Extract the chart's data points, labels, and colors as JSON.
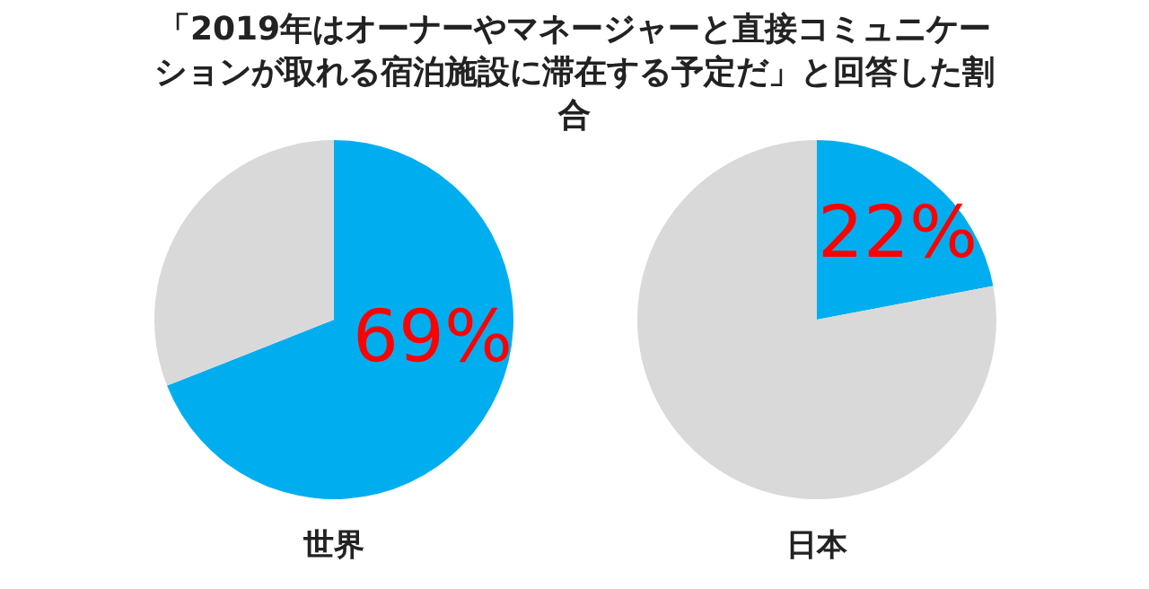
{
  "chart_data": [
    {
      "type": "pie",
      "title": "「2019年はオーナーやマネージャーと直接コミュニケーションが取れる宿泊施設に滞在する予定だ」と回答した割合",
      "xlabel": "世界",
      "categories": [
        null,
        null
      ],
      "values": [
        69,
        31
      ],
      "colors": [
        "#00aeef",
        "#d9d9d9"
      ],
      "value_labels": [
        "69%",
        null
      ]
    },
    {
      "type": "pie",
      "xlabel": "日本",
      "categories": [
        null,
        null
      ],
      "values": [
        22,
        78
      ],
      "colors": [
        "#00aeef",
        "#d9d9d9"
      ],
      "value_labels": [
        "22%",
        null
      ]
    }
  ]
}
